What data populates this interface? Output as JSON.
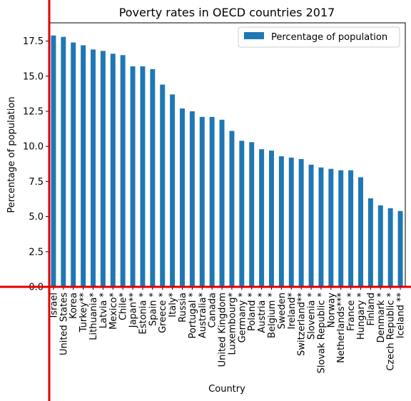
{
  "chart_data": {
    "type": "bar",
    "title": "Poverty rates in OECD countries 2017",
    "xlabel": "Country",
    "ylabel": "Percentage of population",
    "ylim": [
      0,
      18.8
    ],
    "yticks": [
      "0.0",
      "2.5",
      "5.0",
      "7.5",
      "10.0",
      "12.5",
      "15.0",
      "17.5"
    ],
    "ytick_values": [
      0,
      2.5,
      5,
      7.5,
      10,
      12.5,
      15,
      17.5
    ],
    "legend_position": "top-right",
    "grid": false,
    "bar_color": "#1f77b4",
    "highlight_line_color": "#e00000",
    "categories": [
      "Israel",
      "United States",
      "Korea",
      "Turkey**",
      "Lithuania*",
      "Latvia *",
      "Mexico*",
      "Chile*",
      "Japan**",
      "Estonia *",
      "Spain *",
      "Greece *",
      "Italy*",
      "Russia",
      "Portugal *",
      "Australia*",
      "Canada",
      "United Kingdom",
      "Luxembourg*",
      "Germany *",
      "Poland *",
      "Austria *",
      "Belgium *",
      "Sweden",
      "Ireland*",
      "Switzerland**",
      "Slovenia *",
      "Slovak Republic *",
      "Norway",
      "Netherlands***",
      "France *",
      "Hungary *",
      "Finland",
      "Denmark *",
      "Czech Republic *",
      "Iceland **"
    ],
    "series": [
      {
        "name": "Percentage of population",
        "values": [
          17.9,
          17.8,
          17.4,
          17.2,
          16.9,
          16.8,
          16.6,
          16.5,
          15.7,
          15.7,
          15.5,
          14.4,
          13.7,
          12.7,
          12.5,
          12.1,
          12.1,
          11.9,
          11.1,
          10.4,
          10.3,
          9.8,
          9.7,
          9.3,
          9.2,
          9.1,
          8.7,
          8.5,
          8.4,
          8.3,
          8.3,
          7.8,
          6.3,
          5.8,
          5.6,
          5.4
        ]
      }
    ]
  }
}
